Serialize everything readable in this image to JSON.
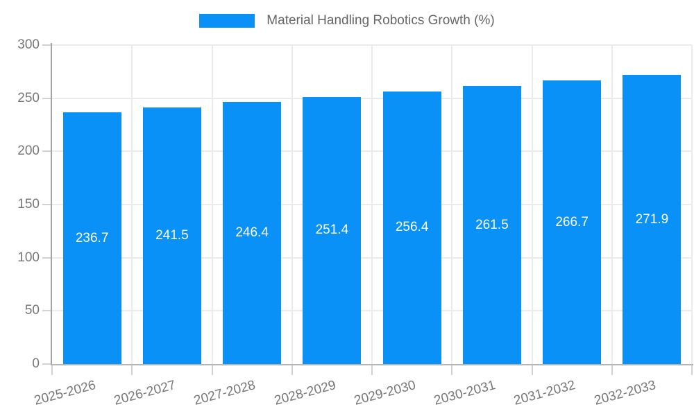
{
  "legend": {
    "label": "Material Handling Robotics Growth (%)",
    "swatch_color": "#0991f8"
  },
  "chart_data": {
    "type": "bar",
    "title": "Material Handling Robotics Growth (%)",
    "categories": [
      "2025-2026",
      "2026-2027",
      "2027-2028",
      "2028-2029",
      "2029-2030",
      "2030-2031",
      "2031-2032",
      "2032-2033"
    ],
    "values": [
      236.7,
      241.5,
      246.4,
      251.4,
      256.4,
      261.5,
      266.7,
      271.9
    ],
    "value_labels": [
      "236.7",
      "241.5",
      "246.4",
      "251.4",
      "256.4",
      "261.5",
      "266.7",
      "271.9"
    ],
    "xlabel": "",
    "ylabel": "",
    "ylim": [
      0,
      300
    ],
    "yticks": [
      0,
      50,
      100,
      150,
      200,
      250,
      300
    ],
    "grid": true,
    "legend_position": "top-center",
    "bar_color": "#0991f8",
    "value_label_color": "#ffffff",
    "axis_label_color": "#777777",
    "gridline_color": "#ebebeb"
  }
}
